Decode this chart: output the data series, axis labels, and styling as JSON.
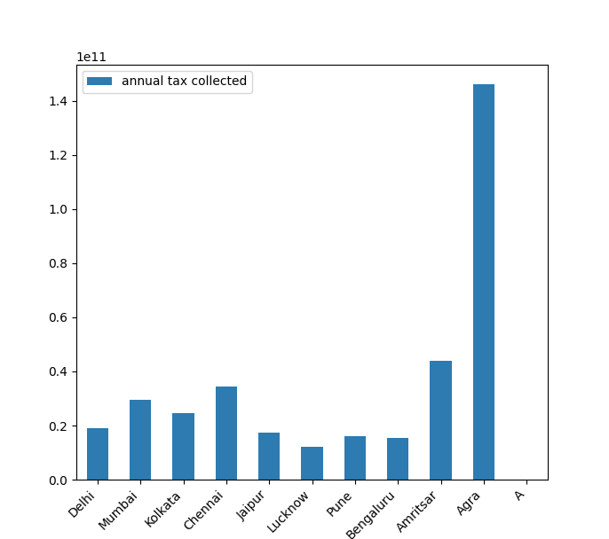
{
  "categories": [
    "Delhi",
    "Mumbai",
    "Kolkata",
    "Chennai",
    "Jaipur",
    "Lucknow",
    "Pune",
    "Bengaluru",
    "Amritsar",
    "Agra",
    "A"
  ],
  "values": [
    19000000000.0,
    29500000000.0,
    24500000000.0,
    34500000000.0,
    17500000000.0,
    12000000000.0,
    16000000000.0,
    15500000000.0,
    44000000000.0,
    146000000000.0,
    0
  ],
  "bar_color": "#2d7bb0",
  "legend_label": "annual tax collected",
  "figsize": [
    6.86,
    6.08
  ],
  "dpi": 100
}
